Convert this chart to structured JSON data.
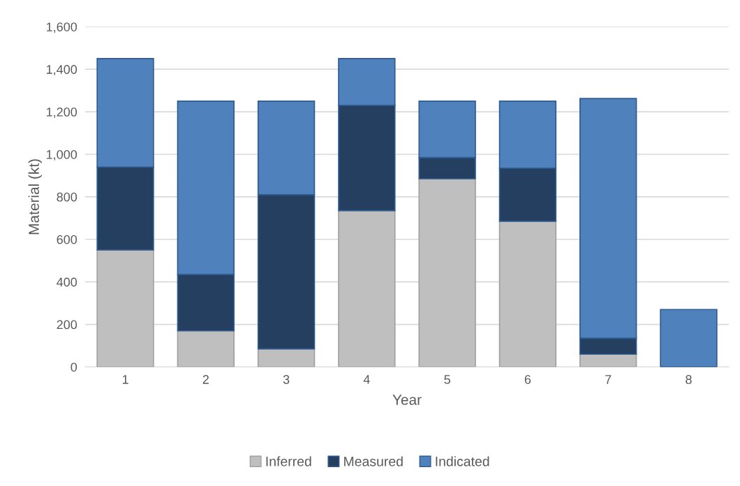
{
  "chart_data": {
    "type": "bar",
    "stacked": true,
    "xlabel": "Year",
    "ylabel": "Material (kt)",
    "categories": [
      "1",
      "2",
      "3",
      "4",
      "5",
      "6",
      "7",
      "8"
    ],
    "series": [
      {
        "name": "Inferred",
        "color": "#bfbfbf",
        "values": [
          550,
          170,
          85,
          735,
          885,
          685,
          60,
          0
        ]
      },
      {
        "name": "Measured",
        "color": "#243f60",
        "values": [
          390,
          265,
          725,
          495,
          100,
          250,
          75,
          0
        ]
      },
      {
        "name": "Indicated",
        "color": "#4f81bd",
        "values": [
          510,
          815,
          440,
          220,
          265,
          315,
          1127,
          270
        ]
      }
    ],
    "ylim": [
      0,
      1600
    ],
    "yticks": [
      0,
      {
        "value": 200,
        "label": "200"
      },
      {
        "value": 400,
        "label": "400"
      },
      {
        "value": 600,
        "label": "600"
      },
      {
        "value": 800,
        "label": "800"
      },
      {
        "value": 1000,
        "label": "1,000"
      },
      {
        "value": 1200,
        "label": "1,200"
      },
      {
        "value": 1400,
        "label": "1,400"
      },
      {
        "value": 1600,
        "label": "1,600"
      }
    ],
    "grid": "y",
    "legend": "bottom"
  }
}
